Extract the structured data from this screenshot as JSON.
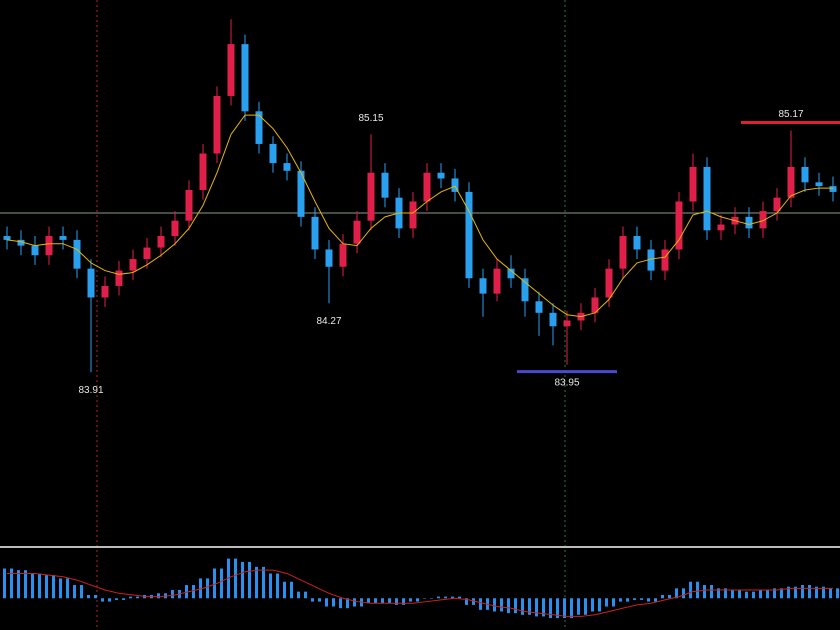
{
  "chart_data": {
    "type": "candlestick",
    "open": [
      84.62,
      84.6,
      84.57,
      84.52,
      84.62,
      84.6,
      84.45,
      84.3,
      84.36,
      84.44,
      84.5,
      84.56,
      84.62,
      84.7,
      84.86,
      85.05,
      85.35,
      85.62,
      85.27,
      85.1,
      85.0,
      84.96,
      84.72,
      84.55,
      84.46,
      84.58,
      84.7,
      84.95,
      84.82,
      84.66,
      84.8,
      84.95,
      84.92,
      84.85,
      84.4,
      84.32,
      84.45,
      84.4,
      84.28,
      84.22,
      84.15,
      84.18,
      84.22,
      84.3,
      84.45,
      84.62,
      84.55,
      84.44,
      84.55,
      84.8,
      84.98,
      84.65,
      84.68,
      84.72,
      84.66,
      84.75,
      84.82,
      84.98,
      84.9,
      84.88
    ],
    "high": [
      84.67,
      84.65,
      84.62,
      84.67,
      84.67,
      84.65,
      84.5,
      84.41,
      84.49,
      84.55,
      84.61,
      84.67,
      84.75,
      84.91,
      85.1,
      85.4,
      85.75,
      85.67,
      85.32,
      85.14,
      85.05,
      85.01,
      84.77,
      84.6,
      84.63,
      84.75,
      85.15,
      85.0,
      84.87,
      84.85,
      85.0,
      85.0,
      84.97,
      84.9,
      84.45,
      84.5,
      84.52,
      84.45,
      84.33,
      84.27,
      84.23,
      84.27,
      84.35,
      84.5,
      84.67,
      84.67,
      84.6,
      84.6,
      84.85,
      85.05,
      85.03,
      84.73,
      84.77,
      84.77,
      84.8,
      84.87,
      85.17,
      85.03,
      84.95,
      84.93
    ],
    "low": [
      84.55,
      84.52,
      84.47,
      84.47,
      84.55,
      84.4,
      83.91,
      84.25,
      84.31,
      84.39,
      84.45,
      84.51,
      84.57,
      84.65,
      84.81,
      85.0,
      85.3,
      85.22,
      85.05,
      84.95,
      84.91,
      84.67,
      84.5,
      84.27,
      84.41,
      84.53,
      84.65,
      84.77,
      84.61,
      84.61,
      84.75,
      84.87,
      84.8,
      84.35,
      84.2,
      84.28,
      84.35,
      84.2,
      84.1,
      84.05,
      83.95,
      84.13,
      84.17,
      84.25,
      84.4,
      84.5,
      84.39,
      84.39,
      84.5,
      84.75,
      84.6,
      84.6,
      84.63,
      84.61,
      84.61,
      84.7,
      84.77,
      84.85,
      84.83,
      84.8
    ],
    "close": [
      84.6,
      84.57,
      84.52,
      84.62,
      84.6,
      84.45,
      84.3,
      84.36,
      84.44,
      84.5,
      84.56,
      84.62,
      84.7,
      84.86,
      85.05,
      85.35,
      85.62,
      85.27,
      85.1,
      85.0,
      84.96,
      84.72,
      84.55,
      84.46,
      84.58,
      84.7,
      84.95,
      84.82,
      84.66,
      84.8,
      84.95,
      84.92,
      84.85,
      84.4,
      84.32,
      84.45,
      84.4,
      84.28,
      84.22,
      84.15,
      84.18,
      84.22,
      84.3,
      84.45,
      84.62,
      84.55,
      84.44,
      84.55,
      84.8,
      84.98,
      84.65,
      84.68,
      84.72,
      84.66,
      84.75,
      84.82,
      84.98,
      84.9,
      84.88,
      84.85
    ],
    "ma": [
      84.6,
      84.59,
      84.57,
      84.58,
      84.58,
      84.55,
      84.48,
      84.44,
      84.42,
      84.43,
      84.47,
      84.52,
      84.58,
      84.66,
      84.78,
      84.95,
      85.15,
      85.25,
      85.25,
      85.18,
      85.08,
      84.95,
      84.8,
      84.66,
      84.58,
      84.57,
      84.66,
      84.72,
      84.74,
      84.74,
      84.8,
      84.85,
      84.88,
      84.75,
      84.6,
      84.5,
      84.44,
      84.38,
      84.32,
      84.26,
      84.21,
      84.2,
      84.22,
      84.29,
      84.4,
      84.48,
      84.5,
      84.51,
      84.6,
      84.73,
      84.75,
      84.72,
      84.7,
      84.68,
      84.7,
      84.74,
      84.83,
      84.86,
      84.87,
      84.87
    ],
    "up_color": "#e0204a",
    "down_color": "#2aa0f0",
    "ma_color": "#e8b800",
    "ylim": [
      83.01,
      85.85
    ],
    "current_price": 84.74,
    "annotations": [
      83.91,
      84.27,
      85.15,
      83.95,
      85.17
    ],
    "levels": [
      {
        "price": 83.95,
        "color": "#4a4ad0"
      },
      {
        "price": 85.17,
        "color": "#e02030"
      }
    ],
    "macd": {
      "hist": [
        0.18,
        0.17,
        0.15,
        0.14,
        0.12,
        0.08,
        0.02,
        -0.02,
        -0.01,
        0.01,
        0.02,
        0.03,
        0.05,
        0.08,
        0.12,
        0.18,
        0.24,
        0.22,
        0.19,
        0.15,
        0.1,
        0.04,
        -0.02,
        -0.05,
        -0.06,
        -0.05,
        -0.03,
        -0.03,
        -0.04,
        -0.02,
        0.0,
        0.01,
        0.01,
        -0.04,
        -0.07,
        -0.08,
        -0.09,
        -0.1,
        -0.11,
        -0.12,
        -0.12,
        -0.1,
        -0.08,
        -0.05,
        -0.02,
        -0.01,
        -0.02,
        0.02,
        0.06,
        0.1,
        0.08,
        0.06,
        0.05,
        0.04,
        0.05,
        0.06,
        0.07,
        0.08,
        0.07,
        0.06
      ],
      "signal": [
        0.15,
        0.15,
        0.15,
        0.14,
        0.13,
        0.11,
        0.08,
        0.05,
        0.03,
        0.02,
        0.01,
        0.01,
        0.02,
        0.04,
        0.06,
        0.09,
        0.13,
        0.16,
        0.17,
        0.17,
        0.15,
        0.11,
        0.07,
        0.03,
        0.0,
        -0.02,
        -0.03,
        -0.03,
        -0.03,
        -0.03,
        -0.02,
        -0.01,
        0.0,
        -0.01,
        -0.03,
        -0.05,
        -0.06,
        -0.08,
        -0.09,
        -0.1,
        -0.11,
        -0.11,
        -0.1,
        -0.08,
        -0.06,
        -0.04,
        -0.03,
        -0.01,
        0.01,
        0.04,
        0.05,
        0.05,
        0.05,
        0.05,
        0.05,
        0.05,
        0.06,
        0.06,
        0.06,
        0.06
      ],
      "hist_color": "#2a90f0",
      "signal_color": "#d02020",
      "ylim": [
        -0.18,
        0.28
      ]
    }
  }
}
